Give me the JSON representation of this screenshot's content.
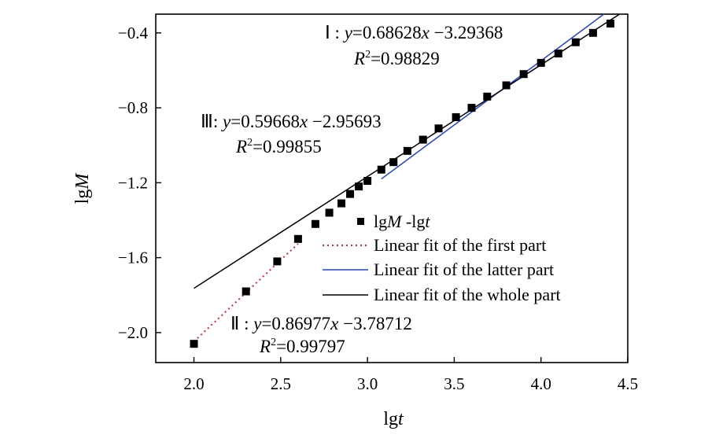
{
  "chart_data": {
    "type": "scatter",
    "title": "",
    "xlabel": "lgt",
    "ylabel": "lgM",
    "xlim": [
      1.78,
      4.5
    ],
    "ylim": [
      -2.16,
      -0.3
    ],
    "x_ticks": [
      2.0,
      2.5,
      3.0,
      3.5,
      4.0,
      4.5
    ],
    "x_tick_labels": [
      "2.0",
      "2.5",
      "3.0",
      "3.5",
      "4.0",
      "4.5"
    ],
    "y_ticks": [
      -0.4,
      -0.8,
      -1.2,
      -1.6,
      -2.0
    ],
    "y_tick_labels": [
      "−0.4",
      "−0.8",
      "−1.2",
      "−1.6",
      "−2.0"
    ],
    "series": [
      {
        "name": "lgM-lgt",
        "kind": "points",
        "x": [
          2.0,
          2.3,
          2.48,
          2.6,
          2.7,
          2.78,
          2.85,
          2.9,
          2.95,
          3.0,
          3.08,
          3.15,
          3.23,
          3.32,
          3.41,
          3.51,
          3.6,
          3.69,
          3.8,
          3.9,
          4.0,
          4.1,
          4.2,
          4.3,
          4.4
        ],
        "y": [
          -2.06,
          -1.78,
          -1.62,
          -1.5,
          -1.42,
          -1.36,
          -1.31,
          -1.26,
          -1.22,
          -1.19,
          -1.13,
          -1.09,
          -1.03,
          -0.97,
          -0.91,
          -0.85,
          -0.8,
          -0.74,
          -0.68,
          -0.62,
          -0.56,
          -0.51,
          -0.45,
          -0.4,
          -0.35
        ]
      },
      {
        "name": "Linear fit of the first part",
        "kind": "fit",
        "slope": 0.86977,
        "intercept": -3.78712,
        "x_range": [
          2.0,
          2.6
        ],
        "color": "#e8232b",
        "dash": "dotted"
      },
      {
        "name": "Linear fit of the latter part",
        "kind": "fit",
        "slope": 0.68628,
        "intercept": -3.29368,
        "x_range": [
          3.08,
          4.4
        ],
        "color": "#2440d8",
        "dash": "solid"
      },
      {
        "name": "Linear fit of the whole part",
        "kind": "fit",
        "slope": 0.59668,
        "intercept": -2.95693,
        "x_range": [
          2.0,
          4.5
        ],
        "color": "#000000",
        "dash": "solid"
      }
    ],
    "annotations": [
      {
        "roman": "Ⅰ : ",
        "equation_y": "y",
        "equation_mid": "=0.68628",
        "equation_x": "x",
        "equation_end": " −3.29368",
        "r2_label": "R",
        "r2_value": "=0.98829"
      },
      {
        "roman": "Ⅲ: ",
        "equation_y": "y",
        "equation_mid": "=0.59668",
        "equation_x": "x",
        "equation_end": " −2.95693",
        "r2_label": "R",
        "r2_value": "=0.99855"
      },
      {
        "roman": "Ⅱ : ",
        "equation_y": "y",
        "equation_mid": "=0.86977",
        "equation_x": "x",
        "equation_end": " −3.78712",
        "r2_label": "R",
        "r2_value": "=0.99797"
      }
    ],
    "legend": {
      "placement": "center-right",
      "points_label_a": "lg",
      "points_label_b": "M",
      "points_label_c": " -lg",
      "points_label_d": "t",
      "fit_first": "Linear fit of the first part",
      "fit_latter": "Linear fit of the latter part",
      "fit_whole": "Linear fit of the whole part"
    },
    "axis_labels": {
      "x_plain": "lg",
      "x_italic": "t",
      "y_plain": "lg",
      "y_italic": "M"
    }
  }
}
